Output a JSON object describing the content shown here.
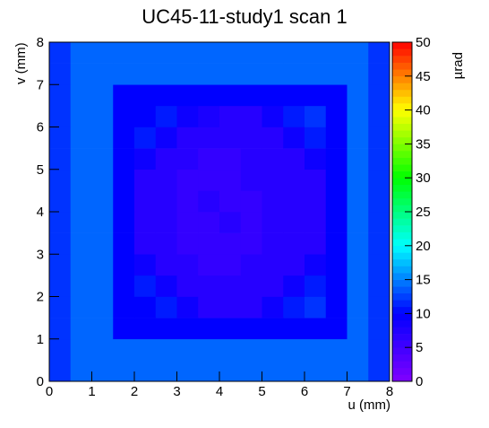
{
  "chart_data": {
    "type": "heatmap",
    "title": "UC45-11-study1 scan 1",
    "xlabel": "u (mm)",
    "ylabel": "v (mm)",
    "zlabel": "µrad",
    "xlim": [
      0,
      8
    ],
    "ylim": [
      0,
      8
    ],
    "zlim": [
      0,
      50
    ],
    "xticks": [
      0,
      1,
      2,
      3,
      4,
      5,
      6,
      7,
      8
    ],
    "yticks": [
      0,
      1,
      2,
      3,
      4,
      5,
      6,
      7,
      8
    ],
    "zticks": [
      0,
      5,
      10,
      15,
      20,
      25,
      30,
      35,
      40,
      45,
      50
    ],
    "colormap": [
      "#8000ff",
      "#0000ff",
      "#00ffff",
      "#00ff00",
      "#ffff00",
      "#ff0000"
    ],
    "xbins": [
      0,
      0.5,
      1,
      1.5,
      2,
      2.5,
      3,
      3.5,
      4,
      4.5,
      5,
      5.5,
      6,
      6.5,
      7,
      7.5,
      8
    ],
    "ybins": [
      0,
      0.5,
      1,
      1.5,
      2,
      2.5,
      3,
      3.5,
      4,
      4.5,
      5,
      5.5,
      6,
      6.5,
      7,
      7.5,
      8
    ],
    "z": [
      [
        12,
        14,
        14,
        14,
        14,
        14,
        14,
        14,
        14,
        14,
        14,
        14,
        14,
        14,
        14,
        12
      ],
      [
        12,
        14,
        14,
        14,
        14,
        14,
        14,
        14,
        14,
        14,
        14,
        14,
        14,
        14,
        14,
        12
      ],
      [
        12,
        14,
        14,
        10,
        10,
        10,
        10,
        10,
        10,
        10,
        10,
        10,
        10,
        10,
        14,
        12
      ],
      [
        12,
        14,
        14,
        10,
        10,
        11,
        9,
        7,
        7,
        7,
        9,
        11,
        12,
        10,
        14,
        12
      ],
      [
        12,
        14,
        14,
        10,
        11,
        9,
        7,
        7,
        7,
        7,
        7,
        9,
        11,
        10,
        14,
        12
      ],
      [
        12,
        14,
        14,
        10,
        9,
        7,
        7,
        6,
        6,
        7,
        7,
        7,
        9,
        10,
        14,
        12
      ],
      [
        12,
        14,
        14,
        10,
        7,
        7,
        6,
        6,
        6,
        6,
        7,
        7,
        7,
        10,
        14,
        12
      ],
      [
        12,
        14,
        14,
        10,
        7,
        7,
        6,
        6,
        7,
        6,
        7,
        7,
        7,
        10,
        14,
        12
      ],
      [
        12,
        14,
        14,
        10,
        7,
        7,
        6,
        7,
        6,
        6,
        7,
        7,
        7,
        10,
        14,
        12
      ],
      [
        12,
        14,
        14,
        10,
        7,
        7,
        6,
        6,
        6,
        7,
        7,
        7,
        7,
        10,
        14,
        12
      ],
      [
        12,
        14,
        14,
        10,
        9,
        7,
        7,
        6,
        6,
        7,
        7,
        7,
        9,
        10,
        14,
        12
      ],
      [
        12,
        14,
        14,
        10,
        11,
        9,
        7,
        7,
        7,
        7,
        7,
        9,
        11,
        10,
        14,
        12
      ],
      [
        12,
        14,
        14,
        10,
        10,
        11,
        9,
        8,
        7,
        7,
        9,
        11,
        12,
        10,
        14,
        12
      ],
      [
        12,
        14,
        14,
        10,
        10,
        10,
        10,
        10,
        10,
        10,
        10,
        10,
        10,
        10,
        14,
        12
      ],
      [
        12,
        14,
        14,
        14,
        14,
        14,
        14,
        14,
        14,
        14,
        14,
        14,
        14,
        14,
        14,
        12
      ],
      [
        12,
        14,
        14,
        14,
        14,
        14,
        14,
        14,
        14,
        14,
        14,
        14,
        14,
        14,
        14,
        12
      ]
    ]
  }
}
